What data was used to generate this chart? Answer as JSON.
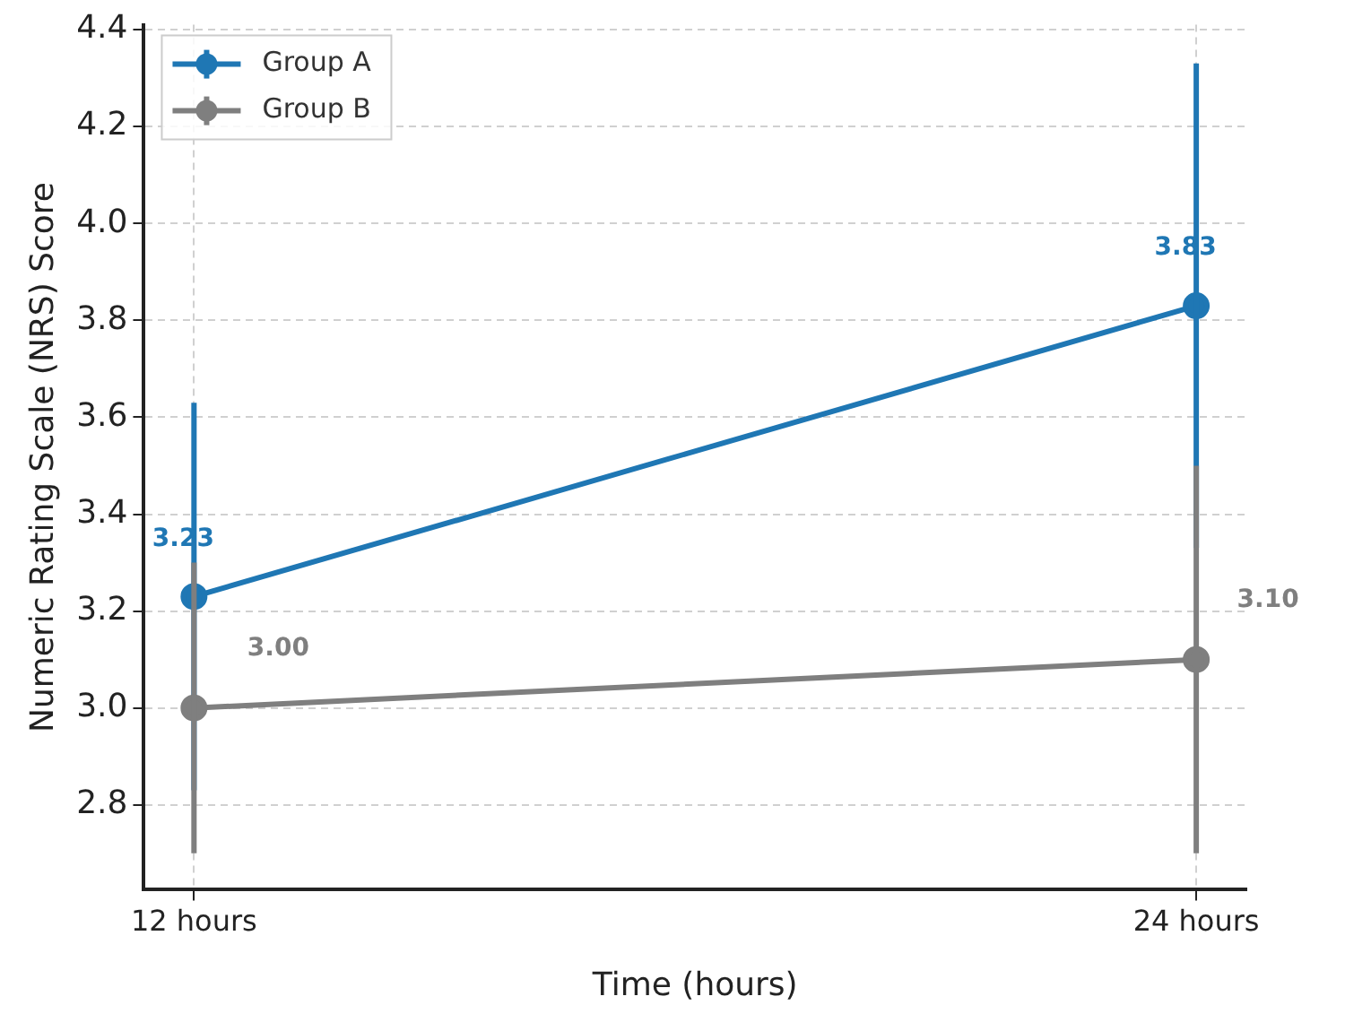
{
  "chart_data": {
    "type": "line",
    "xlabel": "Time (hours)",
    "ylabel": "Numeric Rating Scale (NRS) Score",
    "x": [
      12,
      24
    ],
    "xlim": [
      11.4,
      24.6
    ],
    "xticks": [
      {
        "value": 12,
        "label": "12 hours"
      },
      {
        "value": 24,
        "label": "24 hours"
      }
    ],
    "ylim": [
      2.625,
      4.41
    ],
    "yticks": [
      2.8,
      {
        "value": 3,
        "label": "3.0"
      },
      3.2,
      3.4,
      3.6,
      3.8,
      {
        "value": 4,
        "label": "4.0"
      },
      4.2,
      4.4
    ],
    "series": [
      {
        "name": "Group A",
        "color": "#1f77b4",
        "values": [
          3.23,
          3.83
        ],
        "errors": [
          0.4,
          0.5
        ],
        "value_labels": [
          "3.23",
          "3.83"
        ]
      },
      {
        "name": "Group B",
        "color": "#7f7f7f",
        "values": [
          3.0,
          3.1
        ],
        "errors": [
          0.3,
          0.4
        ],
        "value_labels": [
          "3.00",
          "3.10"
        ]
      }
    ],
    "marker": "circle",
    "line_style": "solid",
    "grid": true,
    "legend": "top left"
  }
}
